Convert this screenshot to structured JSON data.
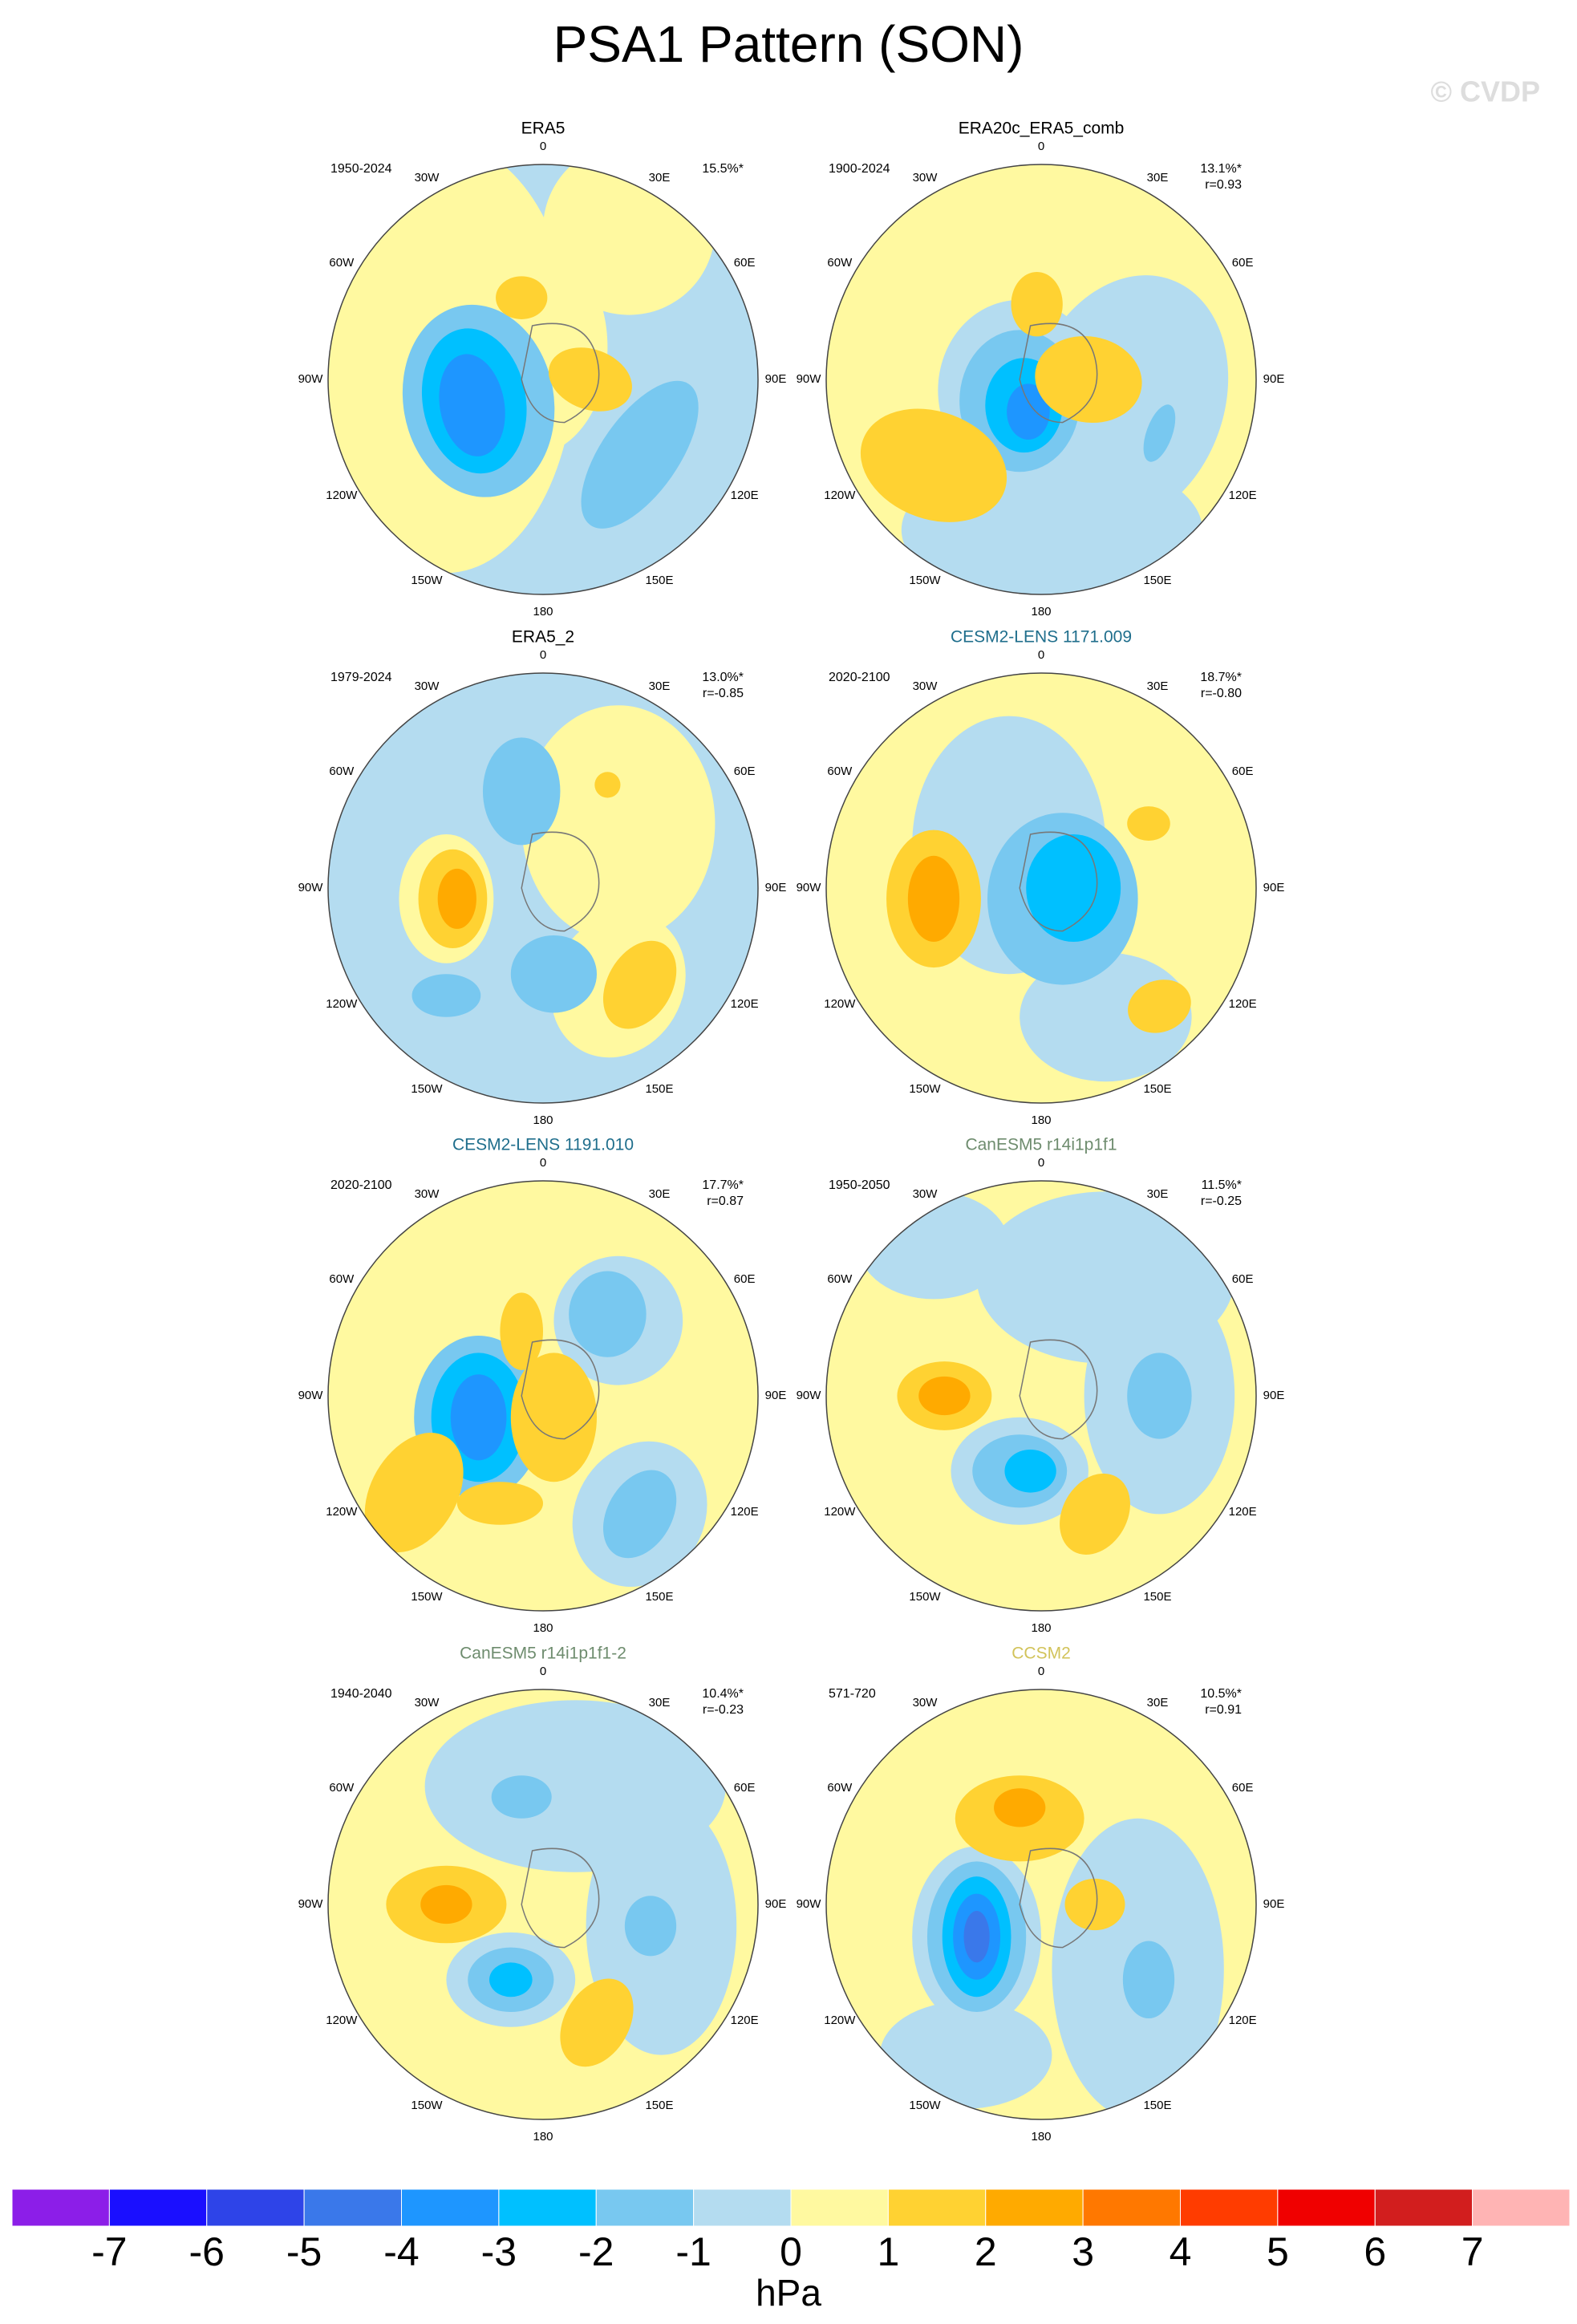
{
  "header": {
    "title": "PSA1 Pattern (SON)",
    "watermark": "© CVDP"
  },
  "longitude_labels": [
    "0",
    "30E",
    "60E",
    "90E",
    "120E",
    "150E",
    "180",
    "150W",
    "120W",
    "90W",
    "60W",
    "30W"
  ],
  "panels": [
    {
      "title": "ERA5",
      "title_color": "#000000",
      "period": "1950-2024",
      "variance": "15.5%*"
    },
    {
      "title": "ERA20c_ERA5_comb",
      "title_color": "#000000",
      "period": "1900-2024",
      "variance": "13.1%*",
      "correlation": "r=0.93"
    },
    {
      "title": "ERA5_2",
      "title_color": "#000000",
      "period": "1979-2024",
      "variance": "13.0%*",
      "correlation": "r=-0.85"
    },
    {
      "title": "CESM2-LENS 1171.009",
      "title_color": "#1f6e8c",
      "period": "2020-2100",
      "variance": "18.7%*",
      "correlation": "r=-0.80"
    },
    {
      "title": "CESM2-LENS 1191.010",
      "title_color": "#1f6e8c",
      "period": "2020-2100",
      "variance": "17.7%*",
      "correlation": "r=0.87"
    },
    {
      "title": "CanESM5 r14i1p1f1",
      "title_color": "#6e8c6e",
      "period": "1950-2050",
      "variance": "11.5%*",
      "correlation": "r=-0.25"
    },
    {
      "title": "CanESM5 r14i1p1f1-2",
      "title_color": "#6e8c6e",
      "period": "1940-2040",
      "variance": "10.4%*",
      "correlation": "r=-0.23"
    },
    {
      "title": "CCSM2",
      "title_color": "#d2c35a",
      "period": "571-720",
      "variance": "10.5%*",
      "correlation": "r=0.91"
    }
  ],
  "colorbar": {
    "colors": [
      "#8c1ee8",
      "#1a0fff",
      "#2e44e8",
      "#3a78ea",
      "#1e96ff",
      "#00c0ff",
      "#78c8f0",
      "#b4dcf0",
      "#fff9a0",
      "#ffd232",
      "#ffaa00",
      "#ff7800",
      "#ff3c00",
      "#f00000",
      "#d21e1e",
      "#ffb4b4"
    ],
    "ticks": [
      -7,
      -6,
      -5,
      -4,
      -3,
      -2,
      -1,
      0,
      1,
      2,
      3,
      4,
      5,
      6,
      7
    ],
    "units": "hPa"
  }
}
